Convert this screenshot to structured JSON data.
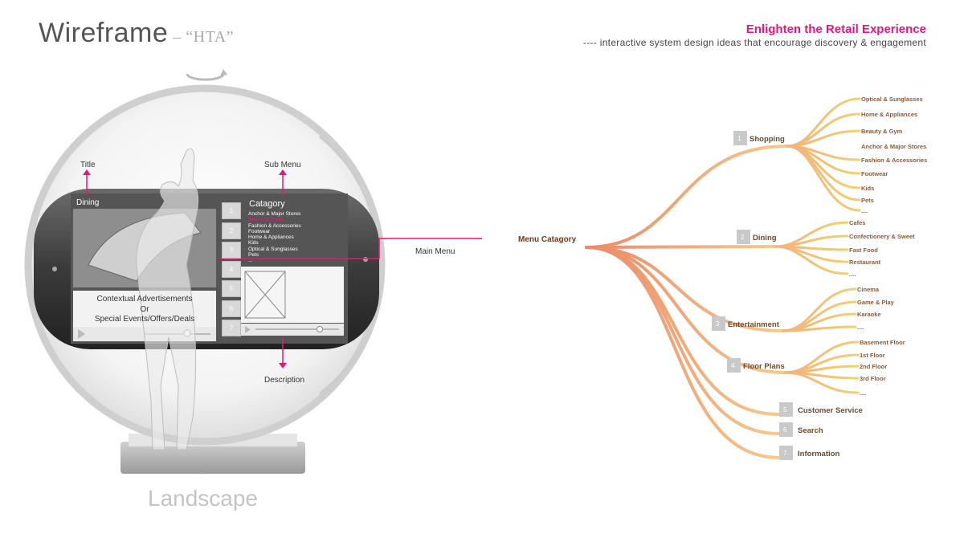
{
  "header": {
    "title": "Wireframe",
    "subtitle": "– “HTA”",
    "headline": "Enlighten the Retail Experience",
    "tagline": "---- interactive system design ideas that encourage discovery & engagement"
  },
  "wireframe": {
    "orientation_label": "Landscape",
    "callouts": {
      "title": "Title",
      "sub_menu": "Sub Menu",
      "description": "Description",
      "main_menu": "Main Menu"
    },
    "screen": {
      "title": "Dining",
      "ad_text": "Contextual Advertisements\nOr\nSpecial Events/Offers/Deals",
      "category_heading": "Catagory",
      "category_items": [
        "Anchor & Major Stores",
        "Beauty & Gym",
        "Fashion & Accessories",
        "Footwear",
        "Home & Appliances",
        "Kids",
        "Optical & Sunglasses",
        "Pets",
        "..."
      ],
      "highlighted_item": "Beauty & Gym",
      "menu_numbers": [
        "1",
        "2",
        "3",
        "4",
        "5",
        "6",
        "7"
      ]
    }
  },
  "menu_tree": {
    "root": "Menu Catagory",
    "branches": [
      {
        "number": "1",
        "label": "Shopping",
        "children": [
          "Optical & Sunglasses",
          "Home & Appliances",
          "Beauty & Gym",
          "Anchor & Major Stores",
          "Fashion & Accessories",
          "Footwear",
          "Kids",
          "Pets",
          "...."
        ]
      },
      {
        "number": "2",
        "label": "Dining",
        "children": [
          "Cafes",
          "Confectionery & Sweet",
          "Fast Food",
          "Restaurant",
          "...."
        ]
      },
      {
        "number": "3",
        "label": "Entertainment",
        "children": [
          "Cinema",
          "Game & Play",
          "Karaoke",
          "...."
        ]
      },
      {
        "number": "4",
        "label": "Floor Plans",
        "children": [
          "Basement Floor",
          "1st Floor",
          "2nd Floor",
          "3rd Floor",
          "...."
        ]
      },
      {
        "number": "5",
        "label": "Customer Service",
        "children": []
      },
      {
        "number": "6",
        "label": "Search",
        "children": []
      },
      {
        "number": "7",
        "label": "Information",
        "children": []
      }
    ]
  },
  "colors": {
    "accent": "#e8157a",
    "branch_light": "#f7c98c",
    "branch_dark": "#e98a6a"
  }
}
